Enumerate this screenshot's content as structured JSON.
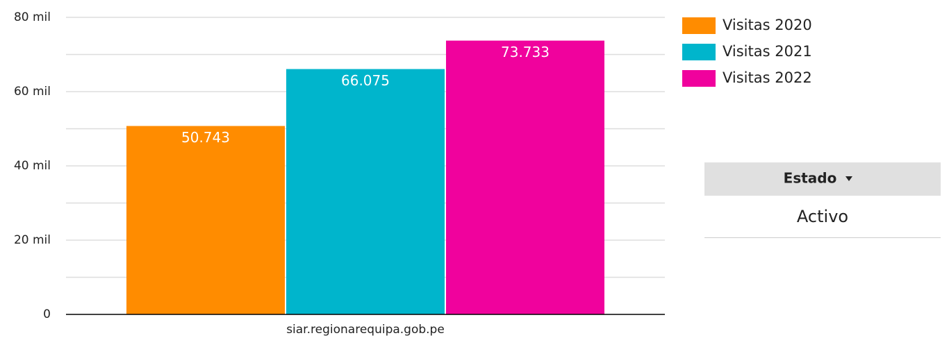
{
  "chart_data": {
    "type": "bar",
    "categories": [
      "siar.regionarequipa.gob.pe"
    ],
    "series": [
      {
        "name": "Visitas 2020",
        "color": "#ff8c00",
        "values": [
          50743
        ],
        "value_labels": [
          "50.743"
        ]
      },
      {
        "name": "Visitas 2021",
        "color": "#00b5cc",
        "values": [
          66075
        ],
        "value_labels": [
          "66.075"
        ]
      },
      {
        "name": "Visitas 2022",
        "color": "#f0029d",
        "values": [
          73733
        ],
        "value_labels": [
          "73.733"
        ]
      }
    ],
    "ylim": [
      0,
      80000
    ],
    "yticks": [
      0,
      {
        "value": 20000,
        "label": "20 mil"
      },
      {
        "value": 40000,
        "label": "40 mil"
      },
      {
        "value": 60000,
        "label": "60 mil"
      },
      {
        "value": 80000,
        "label": "80 mil"
      }
    ],
    "minor_yticks": [
      10000,
      30000,
      50000,
      70000
    ],
    "grid": true,
    "legend": "right"
  },
  "filter": {
    "header": "Estado",
    "value": "Activo"
  }
}
